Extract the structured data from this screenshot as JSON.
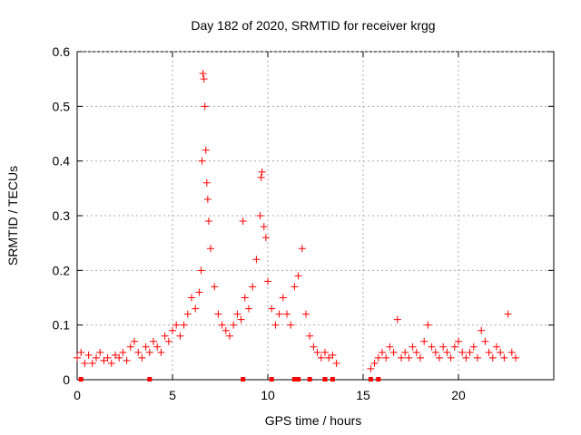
{
  "chart_data": {
    "type": "scatter",
    "title": "Day 182 of 2020, SRMTID for receiver krgg",
    "xlabel": "GPS time / hours",
    "ylabel": "SRMTID / TECUs",
    "xlim": [
      0,
      25
    ],
    "ylim": [
      0,
      0.6
    ],
    "xticks": [
      0,
      5,
      10,
      15,
      20
    ],
    "yticks": [
      0,
      0.1,
      0.2,
      0.3,
      0.4,
      0.5,
      0.6
    ],
    "grid": true,
    "marker": "plus",
    "color": "#ff0000",
    "series": [
      {
        "name": "krgg",
        "points": [
          [
            0.0,
            0.04
          ],
          [
            0.2,
            0.05
          ],
          [
            0.4,
            0.03
          ],
          [
            0.6,
            0.045
          ],
          [
            0.8,
            0.03
          ],
          [
            1.0,
            0.04
          ],
          [
            1.2,
            0.05
          ],
          [
            1.4,
            0.035
          ],
          [
            1.6,
            0.04
          ],
          [
            1.8,
            0.03
          ],
          [
            2.0,
            0.045
          ],
          [
            2.2,
            0.04
          ],
          [
            2.4,
            0.05
          ],
          [
            2.6,
            0.035
          ],
          [
            2.8,
            0.06
          ],
          [
            3.0,
            0.07
          ],
          [
            3.2,
            0.05
          ],
          [
            3.4,
            0.04
          ],
          [
            3.6,
            0.06
          ],
          [
            3.8,
            0.05
          ],
          [
            4.0,
            0.07
          ],
          [
            4.2,
            0.06
          ],
          [
            4.4,
            0.05
          ],
          [
            4.6,
            0.08
          ],
          [
            4.8,
            0.07
          ],
          [
            5.0,
            0.09
          ],
          [
            5.2,
            0.1
          ],
          [
            5.4,
            0.08
          ],
          [
            5.6,
            0.1
          ],
          [
            5.8,
            0.12
          ],
          [
            6.0,
            0.15
          ],
          [
            6.2,
            0.13
          ],
          [
            6.4,
            0.16
          ],
          [
            6.5,
            0.2
          ],
          [
            6.55,
            0.4
          ],
          [
            6.6,
            0.56
          ],
          [
            6.65,
            0.55
          ],
          [
            6.7,
            0.5
          ],
          [
            6.75,
            0.42
          ],
          [
            6.8,
            0.36
          ],
          [
            6.85,
            0.33
          ],
          [
            6.9,
            0.29
          ],
          [
            7.0,
            0.24
          ],
          [
            7.2,
            0.17
          ],
          [
            7.4,
            0.12
          ],
          [
            7.6,
            0.1
          ],
          [
            7.8,
            0.09
          ],
          [
            8.0,
            0.08
          ],
          [
            8.2,
            0.1
          ],
          [
            8.4,
            0.12
          ],
          [
            8.6,
            0.11
          ],
          [
            8.7,
            0.29
          ],
          [
            8.8,
            0.15
          ],
          [
            9.0,
            0.13
          ],
          [
            9.2,
            0.17
          ],
          [
            9.4,
            0.22
          ],
          [
            9.6,
            0.3
          ],
          [
            9.65,
            0.37
          ],
          [
            9.7,
            0.38
          ],
          [
            9.8,
            0.28
          ],
          [
            9.9,
            0.26
          ],
          [
            10.0,
            0.18
          ],
          [
            10.2,
            0.13
          ],
          [
            10.4,
            0.1
          ],
          [
            10.6,
            0.12
          ],
          [
            10.8,
            0.15
          ],
          [
            11.0,
            0.12
          ],
          [
            11.2,
            0.1
          ],
          [
            11.4,
            0.17
          ],
          [
            11.6,
            0.19
          ],
          [
            11.8,
            0.24
          ],
          [
            12.0,
            0.12
          ],
          [
            12.2,
            0.08
          ],
          [
            12.4,
            0.06
          ],
          [
            12.6,
            0.05
          ],
          [
            12.8,
            0.04
          ],
          [
            13.0,
            0.05
          ],
          [
            13.2,
            0.04
          ],
          [
            13.4,
            0.045
          ],
          [
            13.6,
            0.03
          ],
          [
            15.4,
            0.02
          ],
          [
            15.6,
            0.03
          ],
          [
            15.8,
            0.04
          ],
          [
            16.0,
            0.05
          ],
          [
            16.2,
            0.04
          ],
          [
            16.4,
            0.06
          ],
          [
            16.6,
            0.05
          ],
          [
            16.8,
            0.11
          ],
          [
            17.0,
            0.04
          ],
          [
            17.2,
            0.05
          ],
          [
            17.4,
            0.04
          ],
          [
            17.6,
            0.06
          ],
          [
            17.8,
            0.05
          ],
          [
            18.0,
            0.04
          ],
          [
            18.2,
            0.07
          ],
          [
            18.4,
            0.1
          ],
          [
            18.6,
            0.06
          ],
          [
            18.8,
            0.05
          ],
          [
            19.0,
            0.04
          ],
          [
            19.2,
            0.06
          ],
          [
            19.4,
            0.05
          ],
          [
            19.6,
            0.04
          ],
          [
            19.8,
            0.06
          ],
          [
            20.0,
            0.07
          ],
          [
            20.2,
            0.05
          ],
          [
            20.4,
            0.04
          ],
          [
            20.6,
            0.05
          ],
          [
            20.8,
            0.06
          ],
          [
            21.0,
            0.04
          ],
          [
            21.2,
            0.09
          ],
          [
            21.4,
            0.07
          ],
          [
            21.6,
            0.05
          ],
          [
            21.8,
            0.04
          ],
          [
            22.0,
            0.06
          ],
          [
            22.2,
            0.05
          ],
          [
            22.4,
            0.04
          ],
          [
            22.6,
            0.12
          ],
          [
            22.8,
            0.05
          ],
          [
            23.0,
            0.04
          ]
        ]
      }
    ],
    "zero_markers_x": [
      0.2,
      3.8,
      8.7,
      10.2,
      11.4,
      11.6,
      12.2,
      13.0,
      13.4,
      15.4,
      15.8
    ]
  }
}
